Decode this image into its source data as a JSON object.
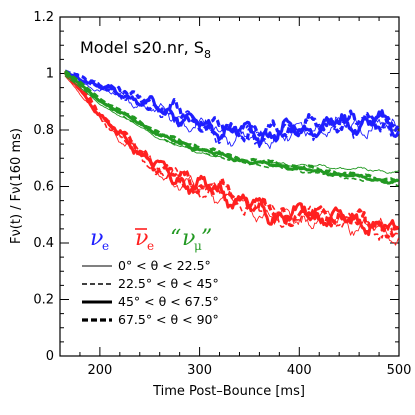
{
  "chart_data": {
    "type": "line",
    "title": "Model s20.nr, S",
    "title_subscript": "8",
    "xlabel": "Time Post–Bounce [ms]",
    "ylabel": "Fν(t) / Fν(160 ms)",
    "xlim": [
      160,
      500
    ],
    "ylim": [
      0,
      1.2
    ],
    "xticks": [
      "200",
      "300",
      "400",
      "500"
    ],
    "yticks": [
      "0",
      "0.2",
      "0.4",
      "0.6",
      "0.8",
      "1",
      "1.2"
    ],
    "colors": {
      "nu_e": "#1f1fff",
      "nubar_e": "#ff2020",
      "nu_mu": "#229922"
    },
    "species": [
      {
        "symbol": "ν",
        "sub": "e",
        "bar": false,
        "quote": false,
        "color": "#1f1fff"
      },
      {
        "symbol": "ν",
        "sub": "e",
        "bar": true,
        "quote": false,
        "color": "#ff2020"
      },
      {
        "symbol": "ν",
        "sub": "μ",
        "bar": false,
        "quote": true,
        "color": "#229922"
      }
    ],
    "angle_bins": [
      {
        "label": "0° < θ < 22.5°",
        "style": "thin-solid"
      },
      {
        "label": "22.5° < θ < 45°",
        "style": "dashed"
      },
      {
        "label": "45° < θ < 67.5°",
        "style": "thick-solid"
      },
      {
        "label": "67.5° < θ < 90°",
        "style": "thick-dashed"
      }
    ],
    "series": [
      {
        "species": "nu_e",
        "x": [
          165,
          180,
          200,
          220,
          240,
          260,
          280,
          300,
          320,
          340,
          360,
          380,
          400,
          420,
          440,
          460,
          480,
          500
        ],
        "y": [
          1.0,
          0.98,
          0.95,
          0.93,
          0.9,
          0.87,
          0.85,
          0.82,
          0.8,
          0.79,
          0.78,
          0.79,
          0.8,
          0.81,
          0.82,
          0.82,
          0.83,
          0.8
        ]
      },
      {
        "species": "nubar_e",
        "x": [
          165,
          180,
          200,
          220,
          240,
          260,
          280,
          300,
          320,
          340,
          360,
          380,
          400,
          420,
          440,
          460,
          480,
          500
        ],
        "y": [
          1.0,
          0.94,
          0.85,
          0.78,
          0.72,
          0.66,
          0.62,
          0.6,
          0.58,
          0.55,
          0.52,
          0.49,
          0.5,
          0.49,
          0.49,
          0.47,
          0.46,
          0.43
        ]
      },
      {
        "species": "nu_mu",
        "x": [
          165,
          180,
          200,
          220,
          240,
          260,
          280,
          300,
          320,
          340,
          360,
          380,
          400,
          420,
          440,
          460,
          480,
          500
        ],
        "y": [
          1.0,
          0.96,
          0.9,
          0.86,
          0.82,
          0.78,
          0.75,
          0.73,
          0.71,
          0.69,
          0.68,
          0.67,
          0.66,
          0.65,
          0.64,
          0.63,
          0.62,
          0.61
        ]
      }
    ]
  }
}
